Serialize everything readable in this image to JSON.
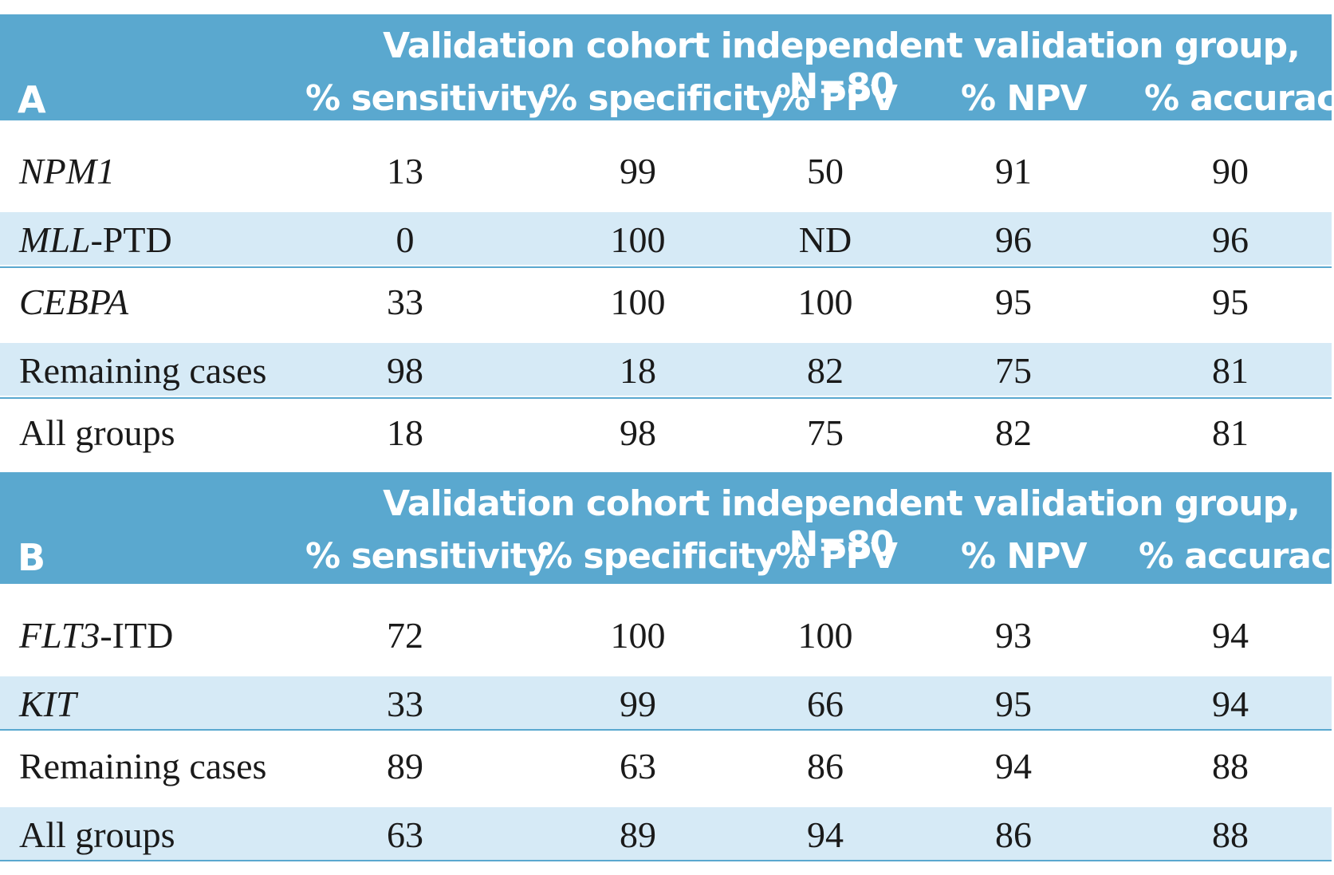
{
  "columns": [
    "% sensitivity",
    "% specificity",
    "% PPV",
    "% NPV",
    "% accuracy"
  ],
  "tables": [
    {
      "letter": "A",
      "group_title": "Validation cohort independent validation group, N=80",
      "rows": [
        {
          "gene": "NPM1",
          "suffix": "",
          "values": [
            "13",
            "99",
            "50",
            "91",
            "90"
          ]
        },
        {
          "gene": "MLL",
          "suffix": "-PTD",
          "values": [
            "0",
            "100",
            "ND",
            "96",
            "96"
          ]
        },
        {
          "gene": "CEBPA",
          "suffix": "",
          "values": [
            "33",
            "100",
            "100",
            "95",
            "95"
          ]
        },
        {
          "gene": "",
          "suffix": "Remaining cases",
          "values": [
            "98",
            "18",
            "82",
            "75",
            "81"
          ]
        },
        {
          "gene": "",
          "suffix": "All groups",
          "values": [
            "18",
            "98",
            "75",
            "82",
            "81"
          ]
        }
      ]
    },
    {
      "letter": "B",
      "group_title": "Validation cohort independent validation group, N=80",
      "rows": [
        {
          "gene": "FLT3",
          "suffix": "-ITD",
          "values": [
            "72",
            "100",
            "100",
            "93",
            "94"
          ]
        },
        {
          "gene": "KIT",
          "suffix": "",
          "values": [
            "33",
            "99",
            "66",
            "95",
            "94"
          ]
        },
        {
          "gene": "",
          "suffix": "Remaining cases",
          "values": [
            "89",
            "63",
            "86",
            "94",
            "88"
          ]
        },
        {
          "gene": "",
          "suffix": "All groups",
          "values": [
            "63",
            "89",
            "94",
            "86",
            "88"
          ]
        }
      ]
    }
  ]
}
